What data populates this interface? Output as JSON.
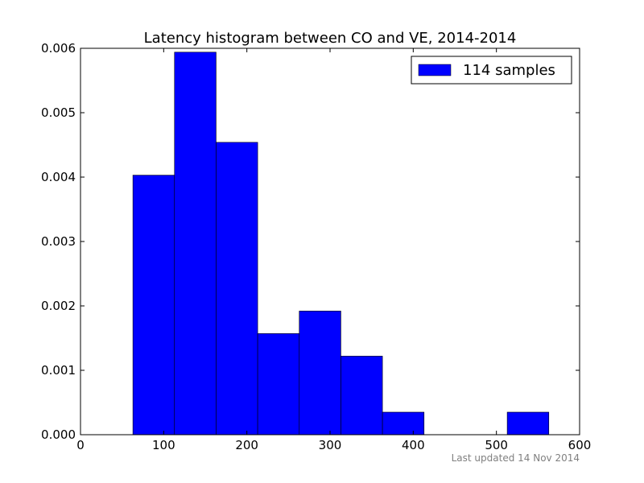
{
  "chart_data": {
    "type": "bar",
    "title": "Latency histogram between CO and VE, 2014-2014",
    "xlabel": "",
    "ylabel": "",
    "xlim": [
      0,
      600
    ],
    "ylim": [
      0,
      0.006
    ],
    "x_ticks": [
      "0",
      "100",
      "200",
      "300",
      "400",
      "500",
      "600"
    ],
    "y_ticks": [
      "0.000",
      "0.001",
      "0.002",
      "0.003",
      "0.004",
      "0.005",
      "0.006"
    ],
    "grid": false,
    "legend_position": "top-right",
    "bar_color": "#0000ff",
    "series": [
      {
        "name": "114 samples",
        "bins": [
          {
            "x0": 63,
            "x1": 113,
            "value": 0.00403
          },
          {
            "x0": 113,
            "x1": 163,
            "value": 0.00594
          },
          {
            "x0": 163,
            "x1": 213,
            "value": 0.00454
          },
          {
            "x0": 213,
            "x1": 263,
            "value": 0.00157
          },
          {
            "x0": 263,
            "x1": 313,
            "value": 0.00192
          },
          {
            "x0": 313,
            "x1": 363,
            "value": 0.00122
          },
          {
            "x0": 363,
            "x1": 413,
            "value": 0.00035
          },
          {
            "x0": 413,
            "x1": 463,
            "value": 0
          },
          {
            "x0": 463,
            "x1": 513,
            "value": 0
          },
          {
            "x0": 513,
            "x1": 563,
            "value": 0.00035
          }
        ]
      }
    ]
  },
  "footer": {
    "note": "Last updated 14 Nov 2014"
  }
}
